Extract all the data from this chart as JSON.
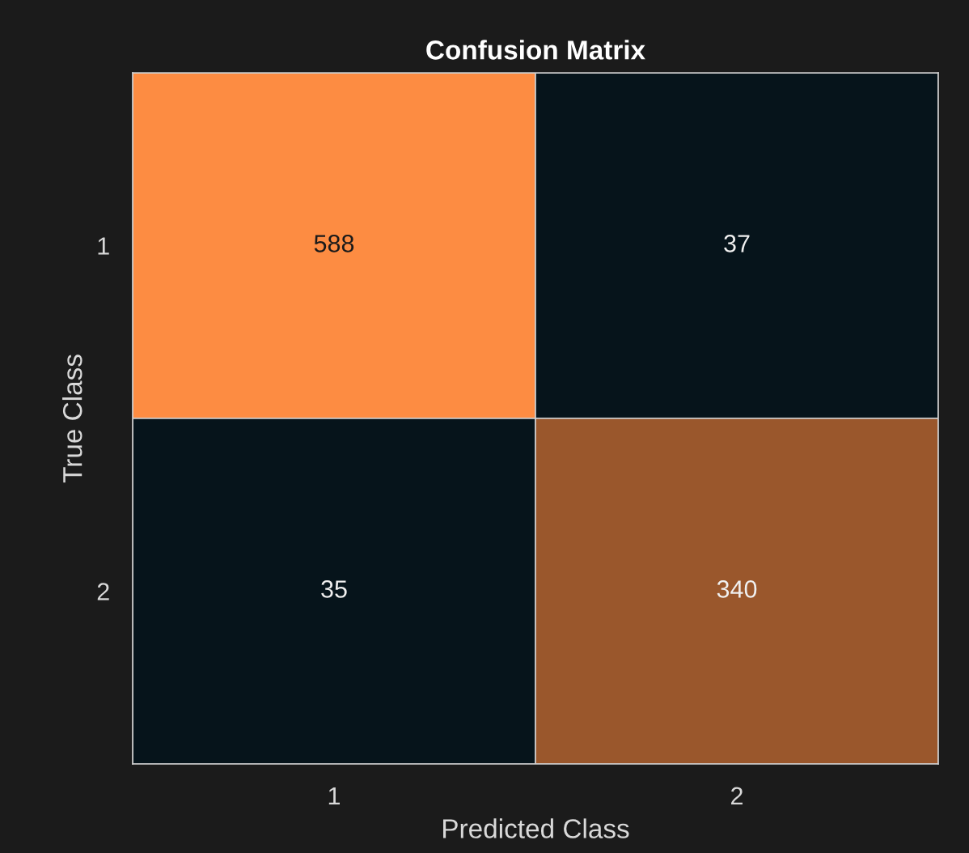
{
  "chart_data": {
    "type": "heatmap",
    "title": "Confusion Matrix",
    "xlabel": "Predicted Class",
    "ylabel": "True Class",
    "categories": [
      "1",
      "2"
    ],
    "y_categories": [
      "1",
      "2"
    ],
    "cells": [
      [
        588,
        37
      ],
      [
        35,
        340
      ]
    ],
    "colors": [
      "#fd8c42",
      "#06141b",
      "#06141b",
      "#9a572c"
    ],
    "data_labels": true
  }
}
